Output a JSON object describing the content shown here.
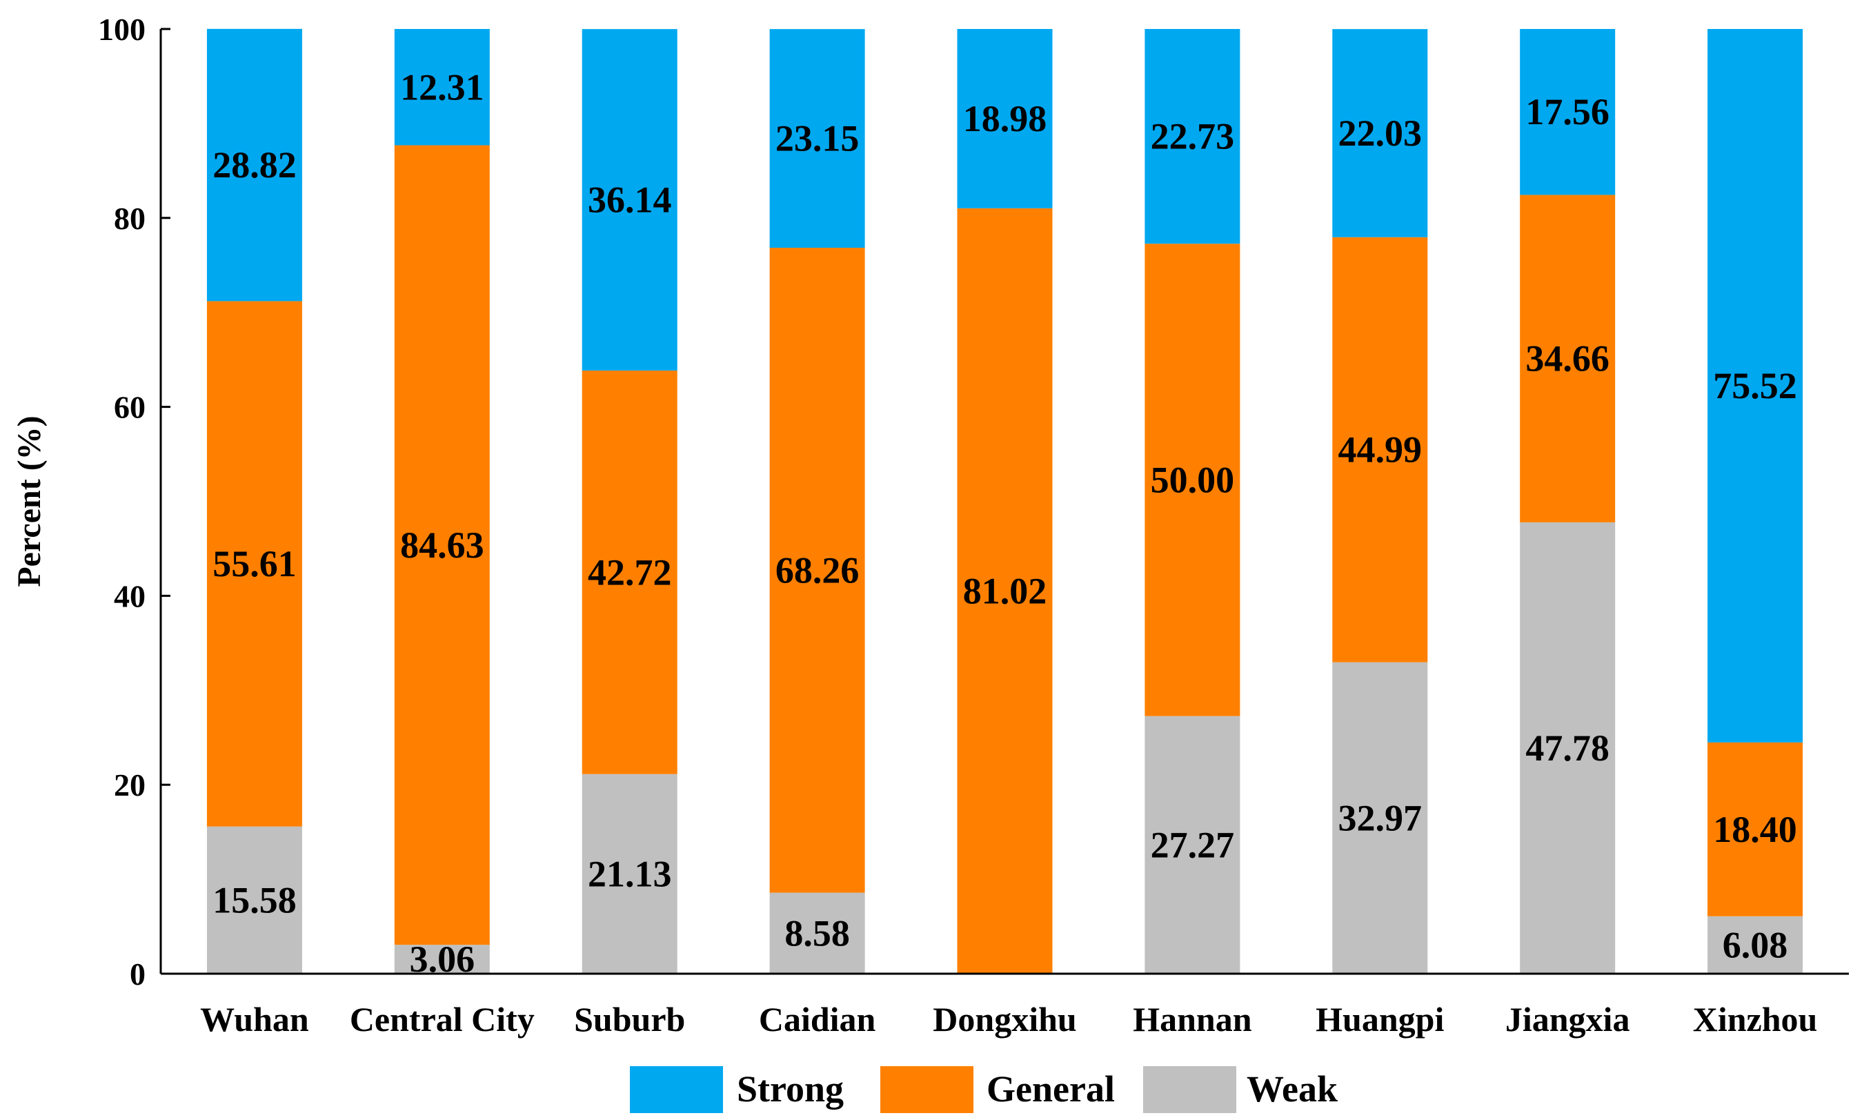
{
  "chart_data": {
    "type": "bar",
    "stacked": true,
    "title": "",
    "xlabel": "",
    "ylabel": "Percent (%)",
    "ylim": [
      0,
      100
    ],
    "yticks": [
      0,
      20,
      40,
      60,
      80,
      100
    ],
    "grid": false,
    "legend_position": "bottom",
    "categories": [
      "Wuhan",
      "Central City",
      "Suburb",
      "Caidian",
      "Dongxihu",
      "Hannan",
      "Huangpi",
      "Jiangxia",
      "Xinzhou"
    ],
    "series": [
      {
        "name": "Weak",
        "color": "#c0c0c0",
        "values": [
          15.58,
          3.06,
          21.13,
          8.58,
          0,
          27.27,
          32.97,
          47.78,
          6.08
        ],
        "labels": [
          "15.58",
          "3.06",
          "21.13",
          "8.58",
          "",
          "27.27",
          "32.97",
          "47.78",
          "6.08"
        ]
      },
      {
        "name": "General",
        "color": "#ff8000",
        "values": [
          55.61,
          84.63,
          42.72,
          68.26,
          81.02,
          50.0,
          44.99,
          34.66,
          18.4
        ],
        "labels": [
          "55.61",
          "84.63",
          "42.72",
          "68.26",
          "81.02",
          "50.00",
          "44.99",
          "34.66",
          "18.40"
        ]
      },
      {
        "name": "Strong",
        "color": "#00a8f0",
        "values": [
          28.82,
          12.31,
          36.14,
          23.15,
          18.98,
          22.73,
          22.03,
          17.56,
          75.52
        ],
        "labels": [
          "28.82",
          "12.31",
          "36.14",
          "23.15",
          "18.98",
          "22.73",
          "22.03",
          "17.56",
          "75.52"
        ]
      }
    ],
    "legend": [
      {
        "name": "Strong",
        "color": "#00a8f0"
      },
      {
        "name": "General",
        "color": "#ff8000"
      },
      {
        "name": "Weak",
        "color": "#c0c0c0"
      }
    ]
  }
}
